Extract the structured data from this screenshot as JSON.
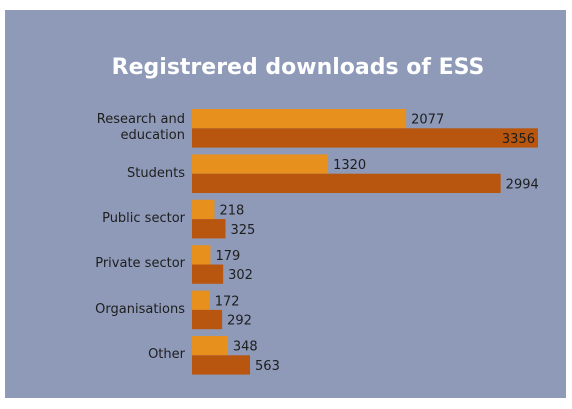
{
  "chart_data": {
    "type": "barh",
    "title": "Registrered downloads of ESS",
    "categories": [
      "Research and education",
      "Students",
      "Public sector",
      "Private sector",
      "Organisations",
      "Other"
    ],
    "series": [
      {
        "color": "#e8901e",
        "values": [
          2077,
          1320,
          218,
          179,
          172,
          348
        ]
      },
      {
        "color": "#b8560f",
        "values": [
          3356,
          2994,
          325,
          302,
          292,
          563
        ]
      }
    ],
    "background": "#8e9ab8"
  }
}
